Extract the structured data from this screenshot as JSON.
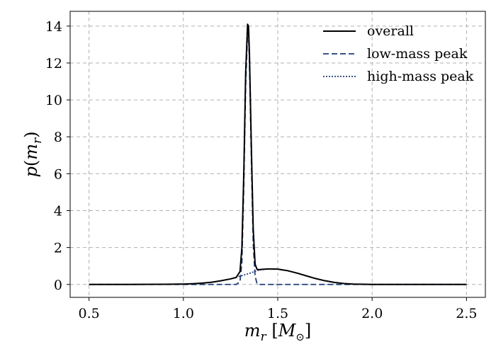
{
  "chart_data": {
    "type": "line",
    "xlabel": "m_r [M_⊙]",
    "ylabel": "p(m_r)",
    "xlim": [
      0.4,
      2.6
    ],
    "ylim": [
      -0.7,
      14.8
    ],
    "xticks": [
      0.5,
      1.0,
      1.5,
      2.0,
      2.5
    ],
    "xtick_labels": [
      "0.5",
      "1.0",
      "1.5",
      "2.0",
      "2.5"
    ],
    "yticks": [
      0,
      2,
      4,
      6,
      8,
      10,
      12,
      14
    ],
    "ytick_labels": [
      "0",
      "2",
      "4",
      "6",
      "8",
      "10",
      "12",
      "14"
    ],
    "grid": true,
    "legend_position": "top-right",
    "series": [
      {
        "name": "overall",
        "style": "solid",
        "color": "#000000",
        "x": [
          0.5,
          0.7,
          0.9,
          1.0,
          1.05,
          1.1,
          1.15,
          1.2,
          1.25,
          1.28,
          1.3,
          1.31,
          1.32,
          1.33,
          1.34,
          1.345,
          1.35,
          1.36,
          1.37,
          1.38,
          1.39,
          1.4,
          1.42,
          1.45,
          1.5,
          1.55,
          1.6,
          1.65,
          1.7,
          1.75,
          1.8,
          1.85,
          1.9,
          2.0,
          2.5
        ],
        "y": [
          0.0,
          0.0,
          0.01,
          0.02,
          0.04,
          0.07,
          0.12,
          0.2,
          0.3,
          0.38,
          0.7,
          2.0,
          6.0,
          11.5,
          14.1,
          14.0,
          12.5,
          7.5,
          3.0,
          1.1,
          0.82,
          0.8,
          0.82,
          0.84,
          0.83,
          0.75,
          0.62,
          0.47,
          0.32,
          0.2,
          0.11,
          0.05,
          0.02,
          0.0,
          0.0
        ]
      },
      {
        "name": "low-mass peak",
        "style": "dashed",
        "color": "#1f3d7a",
        "x": [
          0.5,
          1.2,
          1.28,
          1.3,
          1.31,
          1.32,
          1.33,
          1.34,
          1.345,
          1.35,
          1.36,
          1.37,
          1.38,
          1.39,
          1.4,
          1.45,
          2.5
        ],
        "y": [
          0.0,
          0.0,
          0.0,
          0.15,
          1.2,
          5.3,
          10.8,
          13.6,
          13.6,
          12.0,
          6.8,
          2.2,
          0.45,
          0.05,
          0.0,
          0.0,
          0.0
        ]
      },
      {
        "name": "high-mass peak",
        "style": "dotted",
        "color": "#1f3d7a",
        "x": [
          0.5,
          0.7,
          0.9,
          1.0,
          1.05,
          1.1,
          1.15,
          1.2,
          1.25,
          1.3,
          1.35,
          1.4,
          1.45,
          1.5,
          1.55,
          1.6,
          1.65,
          1.7,
          1.75,
          1.8,
          1.85,
          1.9,
          2.0,
          2.5
        ],
        "y": [
          0.0,
          0.0,
          0.01,
          0.02,
          0.04,
          0.07,
          0.12,
          0.2,
          0.3,
          0.45,
          0.6,
          0.78,
          0.84,
          0.83,
          0.75,
          0.62,
          0.47,
          0.32,
          0.2,
          0.11,
          0.05,
          0.02,
          0.0,
          0.0
        ]
      }
    ]
  }
}
